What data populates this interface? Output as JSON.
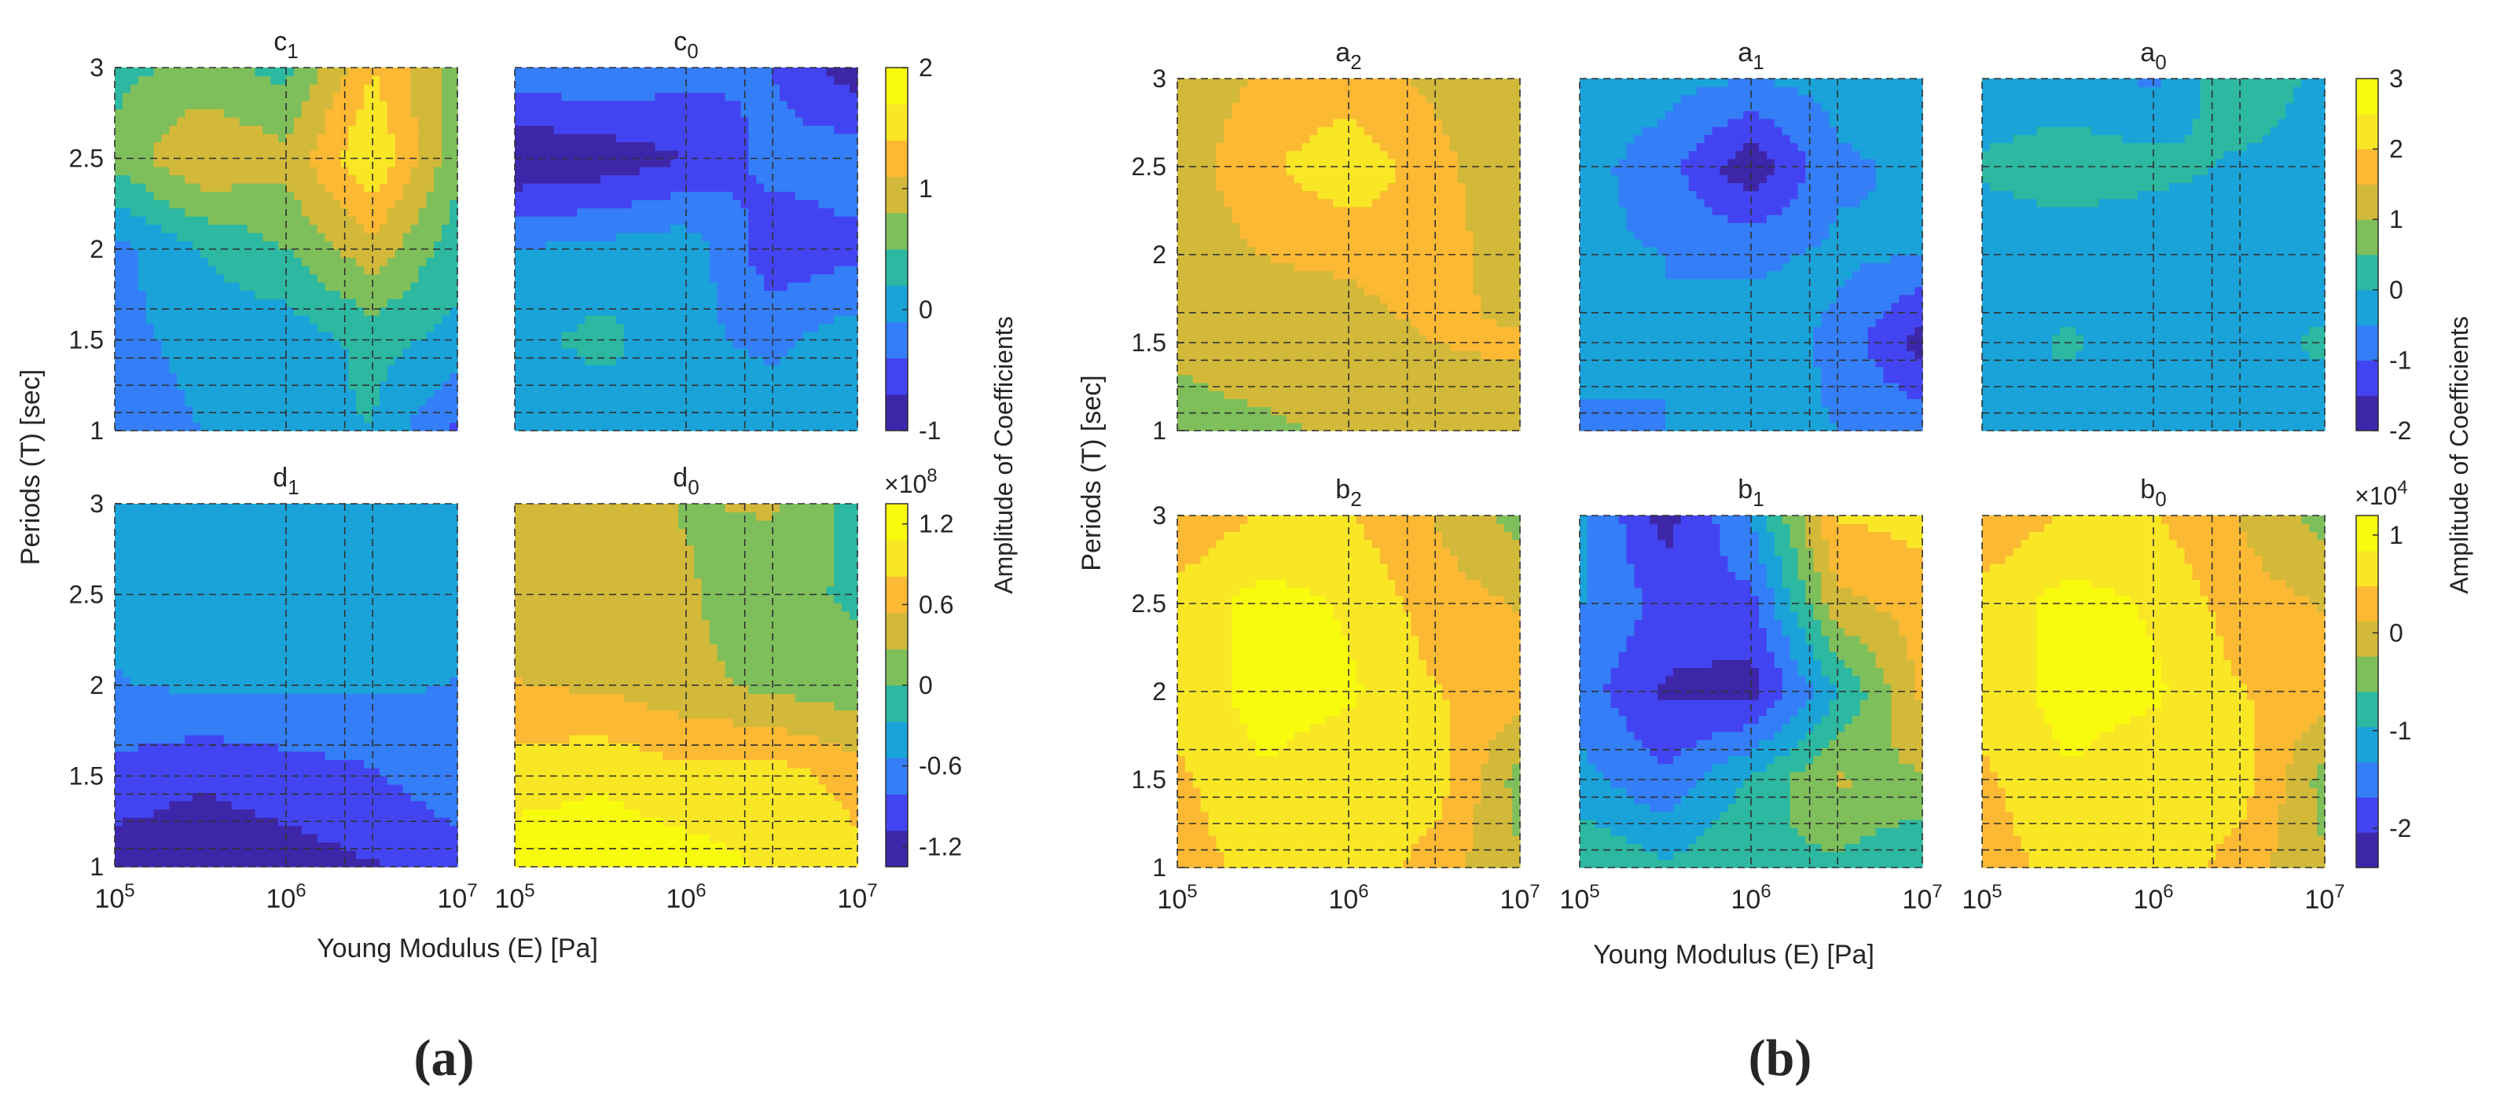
{
  "colormap": [
    "#3e26a8",
    "#4344f1",
    "#347ef7",
    "#1aa3d9",
    "#2cb8a1",
    "#7ebf5b",
    "#d2b939",
    "#fcb933",
    "#f9e725",
    "#f9fb0e"
  ],
  "chart_data": [
    {
      "type": "heatmap",
      "group": "a",
      "group_caption": "(a)",
      "title": "",
      "xlabel": "Young Modulus (E) [Pa]",
      "ylabel": "Periods (T) [sec]",
      "x_scale": "log",
      "xlim": [
        100000,
        10000000
      ],
      "ylim": [
        1,
        3
      ],
      "x_grid_values": [
        1000000,
        2200000,
        3200000
      ],
      "y_grid_values": [
        1.1,
        1.25,
        1.4,
        1.5,
        1.67,
        2,
        2.5
      ],
      "y_ticks": [
        "1",
        "1.5",
        "2",
        "2.5",
        "3"
      ],
      "x_base": "10",
      "x_exponents": [
        "5",
        "6",
        "7"
      ],
      "colorbars": [
        {
          "label": "Amplitude of Coefficients",
          "scale_label": "",
          "range": [
            -1,
            2
          ],
          "ticks": [
            "-1",
            "0",
            "1",
            "2"
          ]
        },
        {
          "label": "",
          "scale_label": "×10",
          "scale_exponent": "8",
          "range": [
            -1.35,
            1.35
          ],
          "ticks": [
            "-1.2",
            "-0.6",
            "0",
            "0.6",
            "1.2"
          ]
        }
      ],
      "panels": [
        {
          "name": "c",
          "sub": "1",
          "row": 0,
          "col": 0,
          "ycols": [
            1,
            1.5,
            2,
            2.5,
            3
          ],
          "z": [
            [
              -0.3,
              -0.1,
              0.1,
              0.2,
              -0.5
            ],
            [
              -0.2,
              0.0,
              0.0,
              0.3,
              0.1
            ],
            [
              -0.2,
              0.2,
              0.5,
              1.0,
              0.3
            ],
            [
              0.6,
              1.1,
              0.9,
              1.7,
              0.6
            ],
            [
              0.4,
              0.6,
              0.4,
              1.4,
              0.7
            ]
          ]
        },
        {
          "name": "c",
          "sub": "0",
          "row": 0,
          "col": 1,
          "ycols": [
            1,
            1.5,
            2,
            2.5,
            3
          ],
          "z": [
            [
              -0.1,
              0.0,
              0.1,
              0.2,
              0.0
            ],
            [
              0.1,
              0.3,
              0.0,
              -0.2,
              0.1
            ],
            [
              -0.1,
              0.0,
              0.1,
              -0.6,
              -0.5
            ],
            [
              -1.0,
              -0.9,
              -0.7,
              -0.3,
              -0.2
            ],
            [
              -0.2,
              -0.1,
              -0.3,
              -0.4,
              -0.9
            ]
          ]
        },
        {
          "name": "d",
          "sub": "1",
          "row": 1,
          "col": 0,
          "ycols": [
            1,
            1.5,
            2,
            2.5,
            3
          ],
          "z": [
            [
              -1.25,
              -1.25,
              -1.2,
              -1.1,
              -1.0
            ],
            [
              -0.9,
              -1.05,
              -0.95,
              -0.85,
              -0.6
            ],
            [
              -0.55,
              -0.5,
              -0.5,
              -0.5,
              -0.55
            ],
            [
              -0.5,
              -0.4,
              -0.45,
              -0.5,
              -0.45
            ],
            [
              -0.45,
              -0.45,
              -0.5,
              -0.5,
              -0.4
            ]
          ]
        },
        {
          "name": "d",
          "sub": "0",
          "row": 1,
          "col": 1,
          "ycols": [
            1,
            1.5,
            2,
            2.5,
            3
          ],
          "z": [
            [
              1.25,
              1.25,
              1.2,
              1.05,
              0.9
            ],
            [
              0.95,
              1.05,
              0.9,
              0.95,
              0.7
            ],
            [
              0.55,
              0.5,
              0.35,
              0.2,
              0.1
            ],
            [
              0.45,
              0.3,
              0.3,
              0.1,
              -0.05
            ],
            [
              0.35,
              0.4,
              0.25,
              0.3,
              -0.1
            ]
          ]
        }
      ]
    },
    {
      "type": "heatmap",
      "group": "b",
      "group_caption": "(b)",
      "title": "",
      "xlabel": "Young Modulus (E) [Pa]",
      "ylabel": "Periods (T) [sec]",
      "x_scale": "log",
      "xlim": [
        100000,
        10000000
      ],
      "ylim": [
        1,
        3
      ],
      "x_grid_values": [
        1000000,
        2200000,
        3200000
      ],
      "y_grid_values": [
        1.1,
        1.25,
        1.4,
        1.5,
        1.67,
        2,
        2.5
      ],
      "y_ticks": [
        "1",
        "1.5",
        "2",
        "2.5",
        "3"
      ],
      "x_base": "10",
      "x_exponents": [
        "5",
        "6",
        "7"
      ],
      "colorbars": [
        {
          "label": "Amplitude of Coefficients",
          "scale_label": "",
          "range": [
            -2,
            3
          ],
          "ticks": [
            "-2",
            "-1",
            "0",
            "1",
            "2",
            "3"
          ]
        },
        {
          "label": "",
          "scale_label": "×10",
          "scale_exponent": "4",
          "range": [
            -2.4,
            1.2
          ],
          "ticks": [
            "-2",
            "-1",
            "0",
            "1"
          ]
        }
      ],
      "panels": [
        {
          "name": "a",
          "sub": "2",
          "row": 0,
          "col": 0,
          "ycols": [
            1,
            1.5,
            2,
            2.5,
            3
          ],
          "z": [
            [
              0.8,
              0.9,
              1.1,
              1.2,
              1.1
            ],
            [
              1.1,
              1.3,
              1.2,
              1.5,
              1.6
            ],
            [
              1.2,
              1.5,
              1.6,
              1.9,
              1.0
            ],
            [
              1.2,
              1.9,
              2.4,
              1.7,
              1.0
            ],
            [
              1.1,
              1.6,
              1.7,
              1.4,
              1.0
            ]
          ]
        },
        {
          "name": "a",
          "sub": "1",
          "row": 0,
          "col": 1,
          "ycols": [
            1,
            1.5,
            2,
            2.5,
            3
          ],
          "z": [
            [
              -0.6,
              -0.5,
              -0.4,
              -0.5,
              -0.6
            ],
            [
              -0.3,
              -0.5,
              -0.2,
              -0.6,
              -1.8
            ],
            [
              -0.4,
              -0.5,
              -0.6,
              -0.4,
              -0.5
            ],
            [
              -0.3,
              -0.8,
              -1.9,
              -0.6,
              -0.4
            ],
            [
              0.0,
              -0.3,
              -0.5,
              -0.3,
              -0.2
            ]
          ]
        },
        {
          "name": "a",
          "sub": "0",
          "row": 0,
          "col": 2,
          "ycols": [
            1,
            1.5,
            2,
            2.5,
            3
          ],
          "z": [
            [
              -0.2,
              -0.3,
              -0.3,
              -0.3,
              -0.3
            ],
            [
              -0.3,
              0.1,
              -0.3,
              -0.2,
              0.1
            ],
            [
              -0.4,
              -0.3,
              -0.5,
              -0.3,
              -0.3
            ],
            [
              0.1,
              0.3,
              0.2,
              -0.1,
              -0.3
            ],
            [
              -0.4,
              -0.3,
              -0.6,
              0.5,
              -0.2
            ]
          ]
        },
        {
          "name": "b",
          "sub": "2",
          "row": 1,
          "col": 0,
          "ycols": [
            1,
            1.5,
            2,
            2.5,
            3
          ],
          "z": [
            [
              0.3,
              0.6,
              0.8,
              0.3,
              -0.2
            ],
            [
              0.4,
              0.8,
              0.6,
              0.7,
              -0.4
            ],
            [
              0.6,
              1.0,
              0.9,
              0.5,
              0.3
            ],
            [
              0.6,
              1.0,
              0.8,
              0.3,
              0.1
            ],
            [
              0.2,
              0.5,
              0.5,
              0.1,
              -0.4
            ]
          ]
        },
        {
          "name": "b",
          "sub": "1",
          "row": 1,
          "col": 1,
          "ycols": [
            1,
            1.5,
            2,
            2.5,
            3
          ],
          "z": [
            [
              -0.6,
              -0.9,
              -0.6,
              -0.7,
              -1.0
            ],
            [
              -1.2,
              -1.6,
              -0.9,
              -0.2,
              -0.3
            ],
            [
              -1.5,
              -2.1,
              -2.2,
              -1.0,
              0.2
            ],
            [
              -1.3,
              -1.8,
              -1.8,
              0.0,
              0.3
            ],
            [
              -1.2,
              -2.2,
              -1.3,
              0.5,
              0.6
            ]
          ]
        },
        {
          "name": "b",
          "sub": "0",
          "row": 1,
          "col": 2,
          "ycols": [
            1,
            1.5,
            2,
            2.5,
            3
          ],
          "z": [
            [
              0.3,
              0.6,
              0.8,
              0.3,
              -0.2
            ],
            [
              0.4,
              0.8,
              0.6,
              0.7,
              -0.4
            ],
            [
              0.6,
              1.0,
              0.9,
              0.5,
              0.3
            ],
            [
              0.6,
              1.0,
              0.8,
              0.3,
              0.1
            ],
            [
              0.2,
              0.5,
              0.5,
              0.1,
              -0.4
            ]
          ]
        }
      ]
    }
  ]
}
